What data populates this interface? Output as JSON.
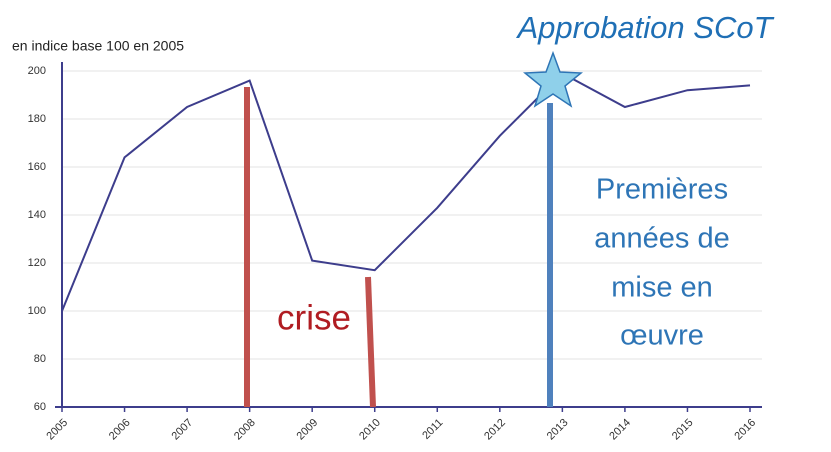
{
  "chart_data": {
    "type": "line",
    "ylabel": "en indice base 100 en 2005",
    "categories": [
      "2005",
      "2006",
      "2007",
      "2008",
      "2009",
      "2010",
      "2011",
      "2012",
      "2013",
      "2014",
      "2015",
      "2016"
    ],
    "series": [
      {
        "name": "indice",
        "color": "#3d3d8c",
        "values": [
          100,
          164,
          185,
          196,
          121,
          117,
          143,
          173,
          199,
          185,
          192,
          194
        ]
      }
    ],
    "ylim": [
      60,
      200
    ],
    "yticks": [
      60,
      80,
      100,
      120,
      140,
      160,
      180,
      200
    ],
    "grid": true,
    "annotations": {
      "approval": "Approbation SCoT",
      "crisis": "crise",
      "implementation": [
        "Premières",
        "années de",
        "mise en",
        "œuvre"
      ]
    }
  }
}
